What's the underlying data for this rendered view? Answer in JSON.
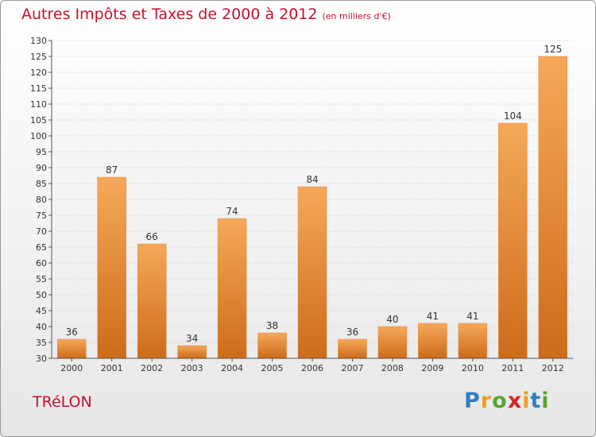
{
  "title": "Autres Impôts et Taxes de 2000 à 2012",
  "unit_note": "(en milliers d'€)",
  "commune": "TRéLON",
  "logo": {
    "letters": [
      "P",
      "r",
      "o",
      "x",
      "i",
      "t",
      "i"
    ],
    "colors": [
      "#2f7fc1",
      "#e8a21c",
      "#58a630",
      "#d8232a",
      "#e8a21c",
      "#2f7fc1",
      "#58a630"
    ]
  },
  "colors": {
    "title": "#c8102e",
    "bar_light": "#f6a85a",
    "bar_dark": "#cc6c1a",
    "grid": "#cccccc"
  },
  "chart_data": {
    "type": "bar",
    "categories": [
      "2000",
      "2001",
      "2002",
      "2003",
      "2004",
      "2005",
      "2006",
      "2007",
      "2008",
      "2009",
      "2010",
      "2011",
      "2012"
    ],
    "values": [
      36,
      87,
      66,
      34,
      74,
      38,
      84,
      36,
      40,
      41,
      41,
      104,
      125
    ],
    "ylim": [
      30,
      130
    ],
    "ytick_step": 5,
    "grid": true,
    "title": "Autres Impôts et Taxes de 2000 à 2012",
    "xlabel": "",
    "ylabel": ""
  }
}
